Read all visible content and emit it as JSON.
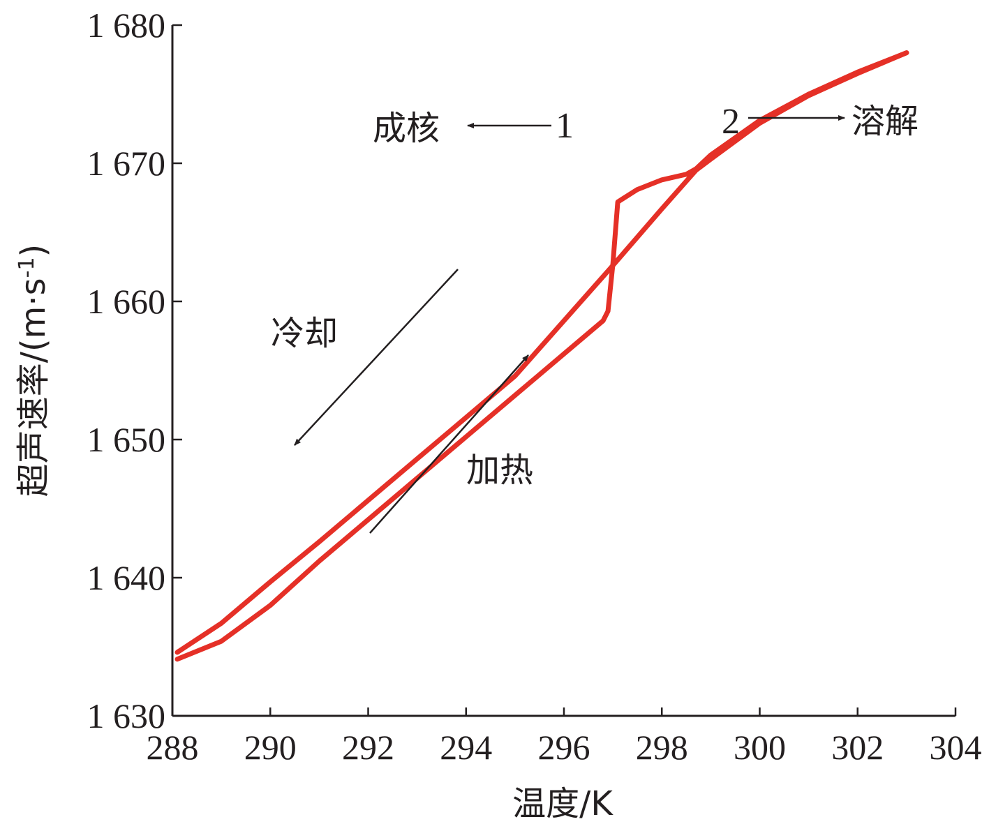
{
  "chart_data": {
    "type": "line",
    "xlabel": "温度/K",
    "ylabel": "超声速率/(m·s",
    "ylabel_sup": "-1",
    "ylabel_close": ")",
    "xlim": [
      288,
      304
    ],
    "ylim": [
      1630,
      1680
    ],
    "x_ticks": [
      "288",
      "290",
      "292",
      "294",
      "296",
      "298",
      "300",
      "302",
      "304"
    ],
    "y_ticks": [
      "1 630",
      "1 640",
      "1 650",
      "1 660",
      "1 670",
      "1 680"
    ],
    "grid": false,
    "colors": {
      "series": "#e53027",
      "axis": "#231f20"
    },
    "series": [
      {
        "x": [
          288.1,
          289,
          290,
          291,
          292,
          293,
          294,
          295,
          296,
          297,
          298,
          298.7,
          299,
          300,
          301,
          302,
          303
        ],
        "y": [
          1634.6,
          1636.7,
          1639.7,
          1642.6,
          1645.6,
          1648.6,
          1651.6,
          1654.6,
          1658.6,
          1662.6,
          1666.7,
          1669.5,
          1670.3,
          1672.9,
          1674.9,
          1676.5,
          1678.0
        ]
      },
      {
        "x": [
          303,
          302,
          301,
          300,
          299,
          298.7,
          298.5,
          298,
          297.5,
          297.1,
          297.0,
          296.9,
          296.8,
          296,
          295,
          294,
          293,
          292,
          291,
          290,
          289,
          288.1
        ],
        "y": [
          1678.0,
          1676.6,
          1675.0,
          1673.1,
          1670.6,
          1669.6,
          1669.2,
          1668.8,
          1668.1,
          1667.2,
          1662.7,
          1659.3,
          1658.6,
          1656.2,
          1653.2,
          1650.2,
          1647.2,
          1644.2,
          1641.2,
          1638.0,
          1635.4,
          1634.1
        ]
      }
    ],
    "annotations": {
      "label_1": "1",
      "label_2": "2",
      "nucleation": "成核",
      "dissolution": "溶解",
      "cooling": "冷却",
      "heating": "加热"
    }
  }
}
